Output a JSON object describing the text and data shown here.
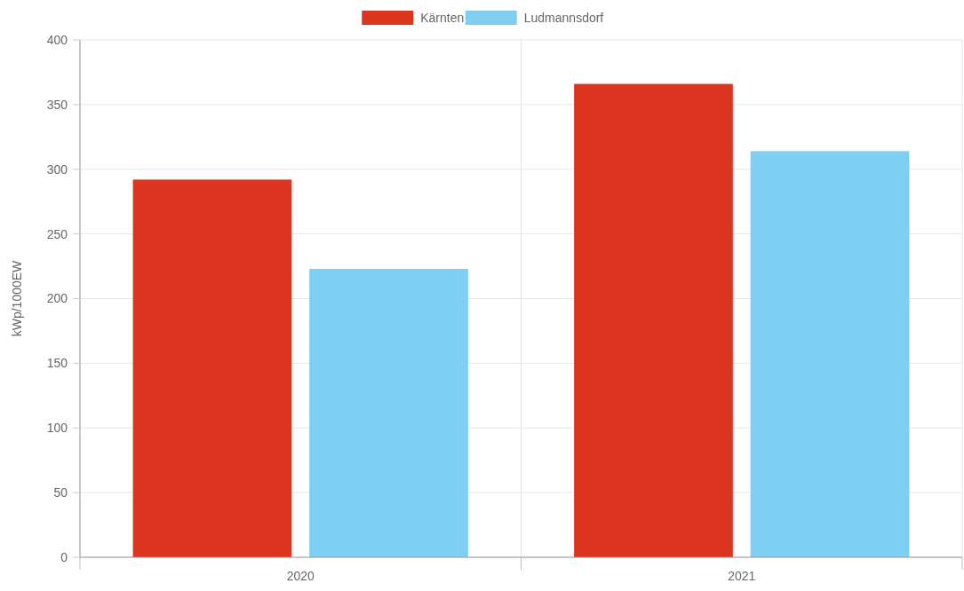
{
  "chart_data": {
    "type": "bar",
    "categories": [
      "2020",
      "2021"
    ],
    "ylabel": "kWp/1000EW",
    "series": [
      {
        "name": "Kärnten",
        "color": "#dc3520",
        "values": [
          292,
          366
        ]
      },
      {
        "name": "Ludmannsdorf",
        "color": "#7fcff3",
        "values": [
          223,
          314
        ]
      }
    ],
    "ylim": [
      0,
      400
    ],
    "yticks": [
      0,
      50,
      100,
      150,
      200,
      250,
      300,
      350,
      400
    ],
    "grid": true,
    "legend": "top"
  }
}
